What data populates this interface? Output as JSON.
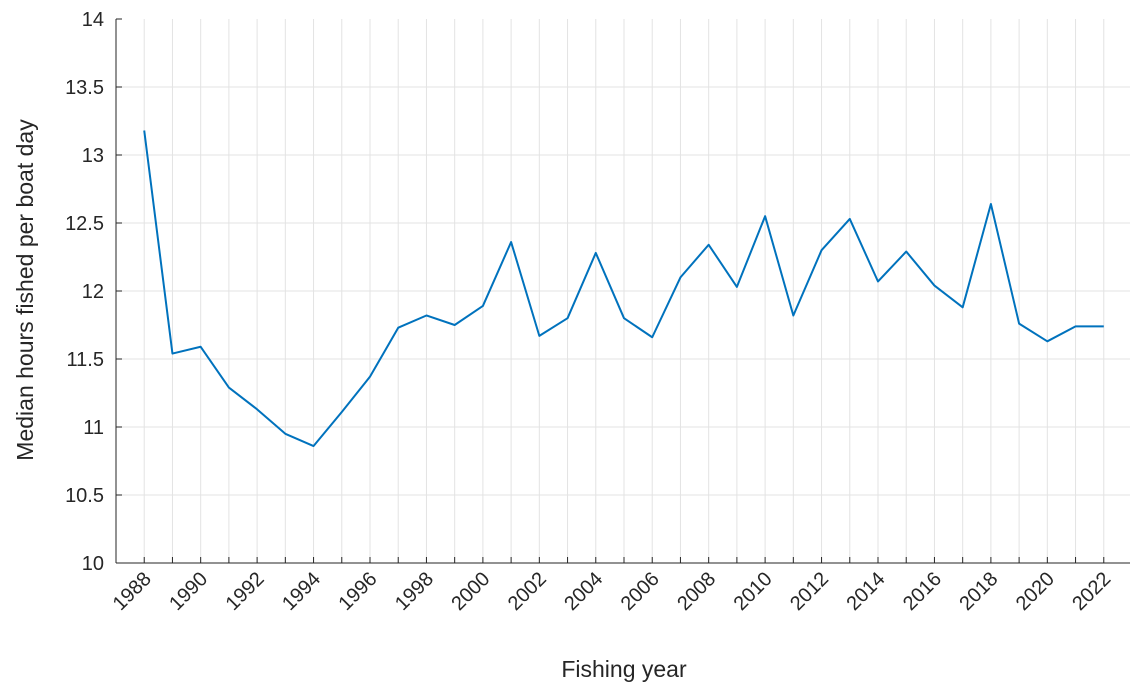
{
  "chart_data": {
    "type": "line",
    "title": "",
    "xlabel": "Fishing year",
    "ylabel": "Median hours fished per boat day",
    "xlim": [
      1987,
      2023
    ],
    "ylim": [
      10,
      14
    ],
    "grid": true,
    "x_ticks": [
      1988,
      1990,
      1992,
      1994,
      1996,
      1998,
      2000,
      2002,
      2004,
      2006,
      2008,
      2010,
      2012,
      2014,
      2016,
      2018,
      2020,
      2022
    ],
    "y_ticks": [
      "10",
      "10.5",
      "11",
      "11.5",
      "12",
      "12.5",
      "13",
      "13.5",
      "14"
    ],
    "x": [
      1988,
      1989,
      1990,
      1991,
      1992,
      1993,
      1994,
      1995,
      1996,
      1997,
      1998,
      1999,
      2000,
      2001,
      2002,
      2003,
      2004,
      2005,
      2006,
      2007,
      2008,
      2009,
      2010,
      2011,
      2012,
      2013,
      2014,
      2015,
      2016,
      2017,
      2018,
      2019,
      2020,
      2021,
      2022
    ],
    "series": [
      {
        "color": "#0072BD",
        "values": [
          13.18,
          11.54,
          11.59,
          11.29,
          11.13,
          10.95,
          10.86,
          11.11,
          11.37,
          11.73,
          11.82,
          11.75,
          11.89,
          12.36,
          11.67,
          11.8,
          12.28,
          11.8,
          11.66,
          12.1,
          12.34,
          12.03,
          12.55,
          11.82,
          12.3,
          12.53,
          12.07,
          12.29,
          12.04,
          11.88,
          12.64,
          11.76,
          11.63,
          11.74,
          11.74
        ]
      }
    ]
  }
}
